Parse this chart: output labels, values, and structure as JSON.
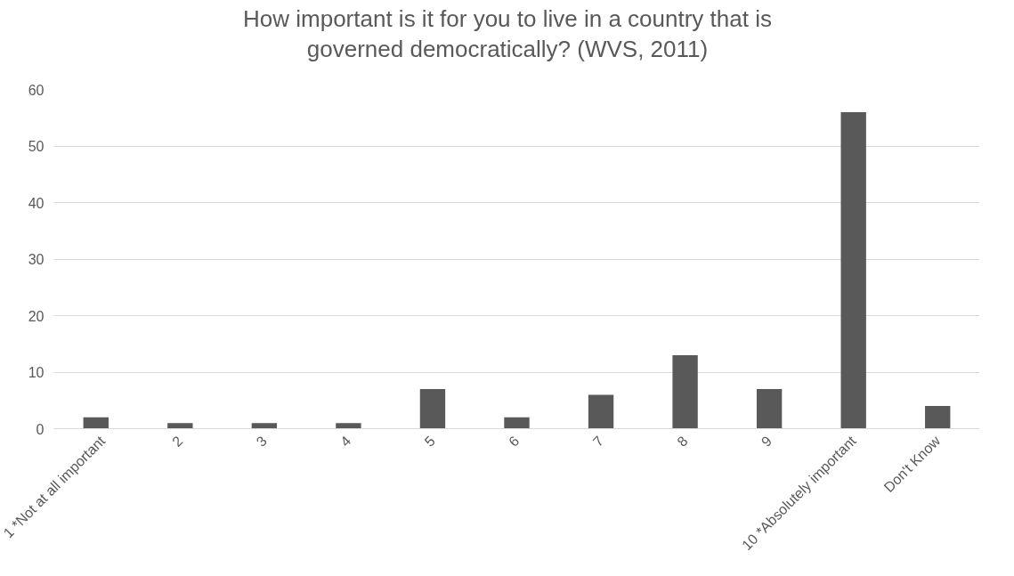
{
  "chart_data": {
    "type": "bar",
    "title": "How important is it for you to live in a country that is governed democratically? (WVS, 2011)",
    "categories": [
      "1 *Not at all important",
      "2",
      "3",
      "4",
      "5",
      "6",
      "7",
      "8",
      "9",
      "10 *Absolutely important",
      "Don't Know"
    ],
    "values": [
      2,
      1,
      1,
      1,
      7,
      2,
      6,
      13,
      7,
      56,
      4
    ],
    "color": "#595959",
    "ylim": [
      0,
      60
    ],
    "yticks": [
      0,
      10,
      20,
      30,
      40,
      50,
      60
    ],
    "grid": "y"
  }
}
